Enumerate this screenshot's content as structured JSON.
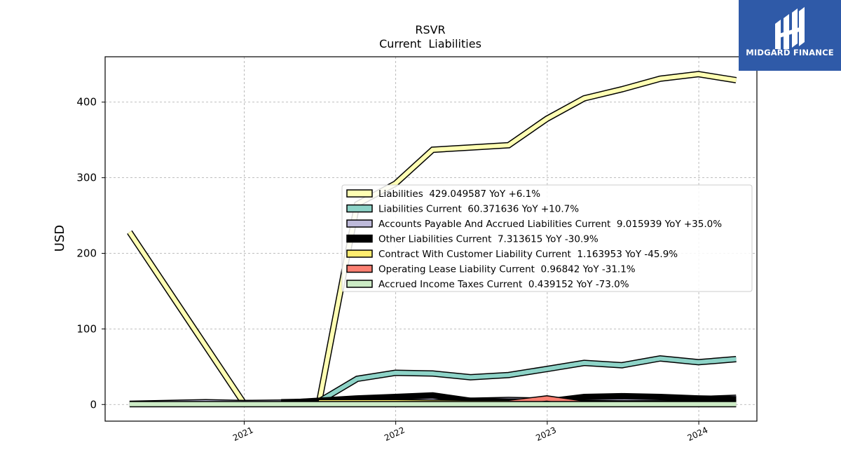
{
  "brand": {
    "name": "MIDGARD FINANCE",
    "bg_color": "#2f5aa8"
  },
  "chart_data": {
    "type": "line",
    "title": "RSVR",
    "subtitle": "Current  Liabilities",
    "xlabel": "",
    "ylabel": "USD",
    "xlim": [
      "2020-02-01",
      "2024-05-20"
    ],
    "ylim": [
      -22,
      460
    ],
    "x_ticks": [
      "2021",
      "2022",
      "2023",
      "2024"
    ],
    "y_ticks": [
      0,
      100,
      200,
      300,
      400
    ],
    "grid": true,
    "legend_position": "center-right",
    "series": [
      {
        "name": "Liabilities",
        "legend": "Liabilities  429.049587 YoY +6.1%",
        "color": "#ffffb3",
        "points": [
          [
            "2020-03-31",
            228
          ],
          [
            "2020-12-31",
            2
          ],
          [
            "2021-03-31",
            2
          ],
          [
            "2021-06-30",
            2
          ],
          [
            "2021-09-30",
            265
          ],
          [
            "2021-12-31",
            292
          ],
          [
            "2022-03-31",
            337
          ],
          [
            "2022-06-30",
            340
          ],
          [
            "2022-09-30",
            343
          ],
          [
            "2022-12-31",
            378
          ],
          [
            "2023-03-31",
            405
          ],
          [
            "2023-06-30",
            417
          ],
          [
            "2023-09-30",
            431
          ],
          [
            "2023-12-31",
            437
          ],
          [
            "2024-03-31",
            429
          ]
        ]
      },
      {
        "name": "Liabilities Current",
        "legend": "Liabilities Current  60.371636 YoY +10.7%",
        "color": "#8dd3c7",
        "points": [
          [
            "2021-03-31",
            3
          ],
          [
            "2021-06-30",
            4
          ],
          [
            "2021-09-30",
            34
          ],
          [
            "2021-12-31",
            42
          ],
          [
            "2022-03-31",
            41
          ],
          [
            "2022-06-30",
            36
          ],
          [
            "2022-09-30",
            39
          ],
          [
            "2022-12-31",
            47
          ],
          [
            "2023-03-31",
            55
          ],
          [
            "2023-06-30",
            52
          ],
          [
            "2023-09-30",
            61
          ],
          [
            "2023-12-31",
            56
          ],
          [
            "2024-03-31",
            60
          ]
        ]
      },
      {
        "name": "Accounts Payable And Accrued Liabilities Current",
        "legend": "Accounts Payable And Accrued Liabilities Current  9.015939 YoY +35.0%",
        "color": "#bebada",
        "points": [
          [
            "2020-03-31",
            1
          ],
          [
            "2020-09-30",
            3
          ],
          [
            "2020-12-31",
            2
          ],
          [
            "2021-06-30",
            3
          ],
          [
            "2021-09-30",
            4
          ],
          [
            "2021-12-31",
            5
          ],
          [
            "2022-03-31",
            6
          ],
          [
            "2022-06-30",
            5
          ],
          [
            "2022-09-30",
            6
          ],
          [
            "2022-12-31",
            5
          ],
          [
            "2023-03-31",
            7
          ],
          [
            "2023-06-30",
            7
          ],
          [
            "2023-09-30",
            7
          ],
          [
            "2023-12-31",
            7
          ],
          [
            "2024-03-31",
            9
          ]
        ]
      },
      {
        "name": "Other Liabilities Current",
        "legend": "Other Liabilities Current  7.313615 YoY -30.9%",
        "color": "#000000",
        "points": [
          [
            "2021-03-31",
            2
          ],
          [
            "2021-06-30",
            5
          ],
          [
            "2021-09-30",
            8
          ],
          [
            "2021-12-31",
            10
          ],
          [
            "2022-03-31",
            12
          ],
          [
            "2022-06-30",
            5
          ],
          [
            "2022-09-30",
            4
          ],
          [
            "2022-12-31",
            4
          ],
          [
            "2023-03-31",
            10
          ],
          [
            "2023-06-30",
            11
          ],
          [
            "2023-09-30",
            10
          ],
          [
            "2023-12-31",
            8
          ],
          [
            "2024-03-31",
            7
          ]
        ]
      },
      {
        "name": "Contract With Customer Liability Current",
        "legend": "Contract With Customer Liability Current  1.163953 YoY -45.9%",
        "color": "#ffed6f",
        "points": [
          [
            "2021-06-30",
            3
          ],
          [
            "2021-12-31",
            3
          ],
          [
            "2022-06-30",
            2
          ],
          [
            "2022-12-31",
            2
          ],
          [
            "2023-06-30",
            1.5
          ],
          [
            "2023-12-31",
            1.5
          ],
          [
            "2024-03-31",
            1.2
          ]
        ]
      },
      {
        "name": "Operating Lease Liability Current",
        "legend": "Operating Lease Liability Current  0.96842 YoY -31.1%",
        "color": "#fb8072",
        "points": [
          [
            "2022-09-30",
            2
          ],
          [
            "2022-12-31",
            8
          ],
          [
            "2023-03-31",
            1
          ],
          [
            "2023-06-30",
            1.2
          ],
          [
            "2023-09-30",
            1.1
          ],
          [
            "2023-12-31",
            1.0
          ],
          [
            "2024-03-31",
            1.0
          ]
        ]
      },
      {
        "name": "Accrued Income Taxes Current",
        "legend": "Accrued Income Taxes Current  0.439152 YoY -73.0%",
        "color": "#ccebc5",
        "points": [
          [
            "2020-03-31",
            0.5
          ],
          [
            "2020-12-31",
            0.5
          ],
          [
            "2021-06-30",
            0.5
          ],
          [
            "2021-12-31",
            0.5
          ],
          [
            "2022-06-30",
            0.5
          ],
          [
            "2022-12-31",
            0.5
          ],
          [
            "2023-06-30",
            0.5
          ],
          [
            "2023-12-31",
            0.5
          ],
          [
            "2024-03-31",
            0.4
          ]
        ]
      }
    ]
  }
}
